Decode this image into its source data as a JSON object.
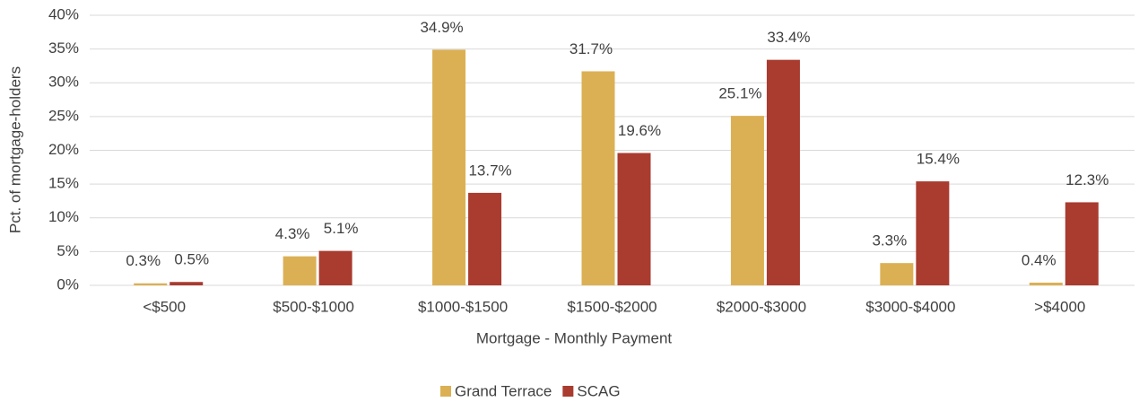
{
  "chart_data": {
    "type": "bar",
    "x_label": "Mortgage - Monthly Payment",
    "y_label": "Pct. of mortgage-holders",
    "categories": [
      "<$500",
      "$500-$1000",
      "$1000-$1500",
      "$1500-$2000",
      "$2000-$3000",
      "$3000-$4000",
      ">$4000"
    ],
    "series": [
      {
        "name": "Grand Terrace",
        "color": "#dbb054",
        "values": [
          0.3,
          4.3,
          34.9,
          31.7,
          25.1,
          3.3,
          0.4
        ],
        "value_labels": [
          "0.3%",
          "4.3%",
          "34.9%",
          "31.7%",
          "25.1%",
          "3.3%",
          "0.4%"
        ]
      },
      {
        "name": "SCAG",
        "color": "#a93b2f",
        "values": [
          0.5,
          5.1,
          13.7,
          19.6,
          33.4,
          15.4,
          12.3
        ],
        "value_labels": [
          "0.5%",
          "5.1%",
          "13.7%",
          "19.6%",
          "33.4%",
          "15.4%",
          "12.3%"
        ]
      }
    ],
    "ylim": [
      0,
      40
    ],
    "yticks": [
      {
        "value": 0,
        "label": "0%"
      },
      {
        "value": 5,
        "label": "5%"
      },
      {
        "value": 10,
        "label": "10%"
      },
      {
        "value": 15,
        "label": "15%"
      },
      {
        "value": 20,
        "label": "20%"
      },
      {
        "value": 25,
        "label": "25%"
      },
      {
        "value": 30,
        "label": "30%"
      },
      {
        "value": 35,
        "label": "35%"
      },
      {
        "value": 40,
        "label": "40%"
      }
    ],
    "grid": true,
    "legend": "bottom"
  }
}
